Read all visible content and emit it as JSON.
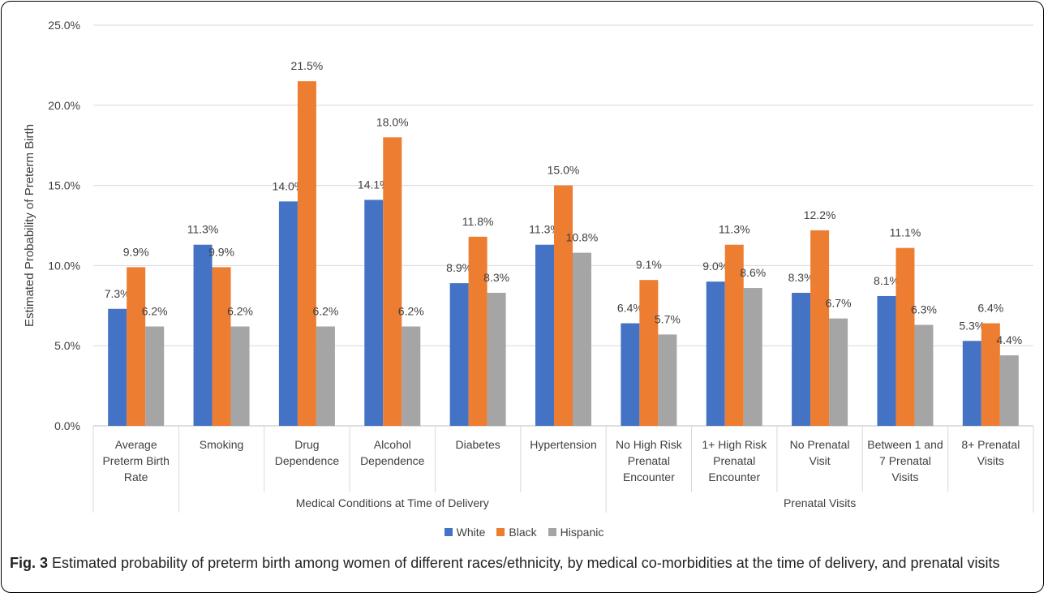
{
  "chart_data": {
    "type": "bar",
    "title": "",
    "ylabel": "Estimated Probability of Preterm Birth",
    "ylim": [
      0,
      25
    ],
    "yticks": [
      "0.0%",
      "5.0%",
      "10.0%",
      "15.0%",
      "20.0%",
      "25.0%"
    ],
    "grid": true,
    "legend_position": "bottom",
    "categories": [
      [
        "Average",
        "Preterm Birth",
        "Rate"
      ],
      [
        "Smoking"
      ],
      [
        "Drug",
        "Dependence"
      ],
      [
        "Alcohol",
        "Dependence"
      ],
      [
        "Diabetes"
      ],
      [
        "Hypertension"
      ],
      [
        "No High Risk",
        "Prenatal",
        "Encounter"
      ],
      [
        "1+ High Risk",
        "Prenatal",
        "Encounter"
      ],
      [
        "No Prenatal",
        "Visit"
      ],
      [
        "Between 1 and",
        "7 Prenatal",
        "Visits"
      ],
      [
        "8+ Prenatal",
        "Visits"
      ]
    ],
    "groups": [
      {
        "label": "",
        "start": 0,
        "end": 0
      },
      {
        "label": "Medical Conditions at Time of Delivery",
        "start": 1,
        "end": 5
      },
      {
        "label": "Prenatal Visits",
        "start": 6,
        "end": 10
      }
    ],
    "series": [
      {
        "name": "White",
        "color": "#4472C4",
        "values": [
          7.3,
          11.3,
          14.0,
          14.1,
          8.9,
          11.3,
          6.4,
          9.0,
          8.3,
          8.1,
          5.3
        ],
        "labels": [
          "7.3%",
          "11.3%",
          "14.0%",
          "14.1%",
          "8.9%",
          "11.3%",
          "6.4%",
          "9.0%",
          "8.3%",
          "8.1%",
          "5.3%"
        ]
      },
      {
        "name": "Black",
        "color": "#ED7D31",
        "values": [
          9.9,
          9.9,
          21.5,
          18.0,
          11.8,
          15.0,
          9.1,
          11.3,
          12.2,
          11.1,
          6.4
        ],
        "labels": [
          "9.9%",
          "9.9%",
          "21.5%",
          "18.0%",
          "11.8%",
          "15.0%",
          "9.1%",
          "11.3%",
          "12.2%",
          "11.1%",
          "6.4%"
        ]
      },
      {
        "name": "Hispanic",
        "color": "#A5A5A5",
        "values": [
          6.2,
          6.2,
          6.2,
          6.2,
          8.3,
          10.8,
          5.7,
          8.6,
          6.7,
          6.3,
          4.4
        ],
        "labels": [
          "6.2%",
          "6.2%",
          "6.2%",
          "6.2%",
          "8.3%",
          "10.8%",
          "5.7%",
          "8.6%",
          "6.7%",
          "6.3%",
          "4.4%"
        ]
      }
    ]
  },
  "caption": {
    "fig_label": "Fig. 3",
    "text": " Estimated probability of preterm birth among women of different races/ethnicity, by medical co-morbidities at the time of delivery, and prenatal visits"
  }
}
